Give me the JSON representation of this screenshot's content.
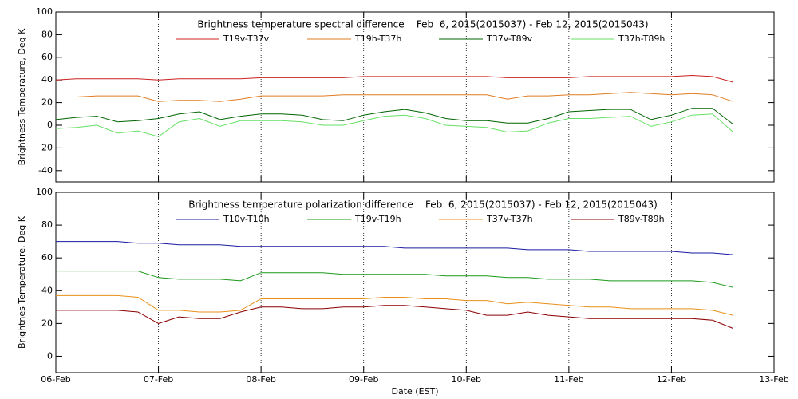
{
  "chart_data": [
    {
      "type": "line",
      "title": "Brightness temperature spectral difference    Feb  6, 2015(2015037) - Feb 12, 2015(2015043)",
      "y_label": "Brightness Temperature, Deg K",
      "x": [
        0,
        0.2,
        0.4,
        0.6,
        0.8,
        1.0,
        1.2,
        1.4,
        1.6,
        1.8,
        2.0,
        2.2,
        2.4,
        2.6,
        2.8,
        3.0,
        3.2,
        3.4,
        3.6,
        3.8,
        4.0,
        4.2,
        4.4,
        4.6,
        4.8,
        5.0,
        5.2,
        5.4,
        5.6,
        5.8,
        6.0,
        6.2,
        6.4,
        6.6
      ],
      "xlim": [
        0,
        7
      ],
      "xticks": [
        0,
        1,
        2,
        3,
        4,
        5,
        6,
        7
      ],
      "xgrid": true,
      "ylim": [
        -50,
        100
      ],
      "yticks": [
        -40,
        -20,
        0,
        20,
        40,
        60,
        80,
        100
      ],
      "series": [
        {
          "name": "T19v-T37v",
          "color": "#cc2020",
          "values": [
            40,
            41,
            41,
            41,
            41,
            40,
            41,
            41,
            41,
            41,
            42,
            42,
            42,
            42,
            42,
            43,
            43,
            43,
            43,
            43,
            43,
            43,
            42,
            42,
            42,
            42,
            43,
            43,
            43,
            43,
            43,
            44,
            43,
            38
          ]
        },
        {
          "name": "T19h-T37h",
          "color": "#e07b20",
          "values": [
            25,
            25,
            26,
            26,
            26,
            21,
            22,
            22,
            21,
            23,
            26,
            26,
            26,
            26,
            27,
            27,
            27,
            27,
            27,
            27,
            27,
            27,
            23,
            26,
            26,
            27,
            27,
            28,
            29,
            28,
            27,
            28,
            27,
            21
          ]
        },
        {
          "name": "T37v-T89v",
          "color": "#006400",
          "values": [
            5,
            7,
            8,
            3,
            4,
            6,
            10,
            12,
            5,
            8,
            10,
            10,
            9,
            5,
            4,
            9,
            12,
            14,
            11,
            6,
            4,
            4,
            2,
            2,
            6,
            12,
            13,
            14,
            14,
            5,
            9,
            15,
            15,
            1
          ]
        },
        {
          "name": "T37h-T89h",
          "color": "#66e066",
          "values": [
            -3,
            -2,
            0,
            -7,
            -5,
            -10,
            3,
            6,
            -1,
            4,
            4,
            4,
            3,
            0,
            0,
            4,
            8,
            9,
            6,
            0,
            -1,
            -2,
            -6,
            -5,
            2,
            6,
            6,
            7,
            8,
            -1,
            3,
            9,
            10,
            -6
          ]
        }
      ]
    },
    {
      "type": "line",
      "title": "Brightness temperature polarization difference    Feb  6, 2015(2015037) - Feb 12, 2015(2015043)",
      "y_label": "Brightnes Temperature, Deg K",
      "x_label": "Date (EST)",
      "x": [
        0,
        0.2,
        0.4,
        0.6,
        0.8,
        1.0,
        1.2,
        1.4,
        1.6,
        1.8,
        2.0,
        2.2,
        2.4,
        2.6,
        2.8,
        3.0,
        3.2,
        3.4,
        3.6,
        3.8,
        4.0,
        4.2,
        4.4,
        4.6,
        4.8,
        5.0,
        5.2,
        5.4,
        5.6,
        5.8,
        6.0,
        6.2,
        6.4,
        6.6
      ],
      "xlim": [
        0,
        7
      ],
      "xticks": [
        {
          "value": 0,
          "label": "06-Feb"
        },
        {
          "value": 1,
          "label": "07-Feb"
        },
        {
          "value": 2,
          "label": "08-Feb"
        },
        {
          "value": 3,
          "label": "09-Feb"
        },
        {
          "value": 4,
          "label": "10-Feb"
        },
        {
          "value": 5,
          "label": "11-Feb"
        },
        {
          "value": 6,
          "label": "12-Feb"
        },
        {
          "value": 7,
          "label": "13-Feb"
        }
      ],
      "xgrid": true,
      "ylim": [
        -10,
        100
      ],
      "yticks": [
        0,
        20,
        40,
        60,
        80,
        100
      ],
      "series": [
        {
          "name": "T10v-T10h",
          "color": "#1a1aa0",
          "values": [
            70,
            70,
            70,
            70,
            69,
            69,
            68,
            68,
            68,
            67,
            67,
            67,
            67,
            67,
            67,
            67,
            67,
            66,
            66,
            66,
            66,
            66,
            66,
            65,
            65,
            65,
            64,
            64,
            64,
            64,
            64,
            63,
            63,
            62
          ]
        },
        {
          "name": "T19v-T19h",
          "color": "#1a9a1a",
          "values": [
            52,
            52,
            52,
            52,
            52,
            48,
            47,
            47,
            47,
            46,
            51,
            51,
            51,
            51,
            50,
            50,
            50,
            50,
            50,
            49,
            49,
            49,
            48,
            48,
            47,
            47,
            47,
            46,
            46,
            46,
            46,
            46,
            45,
            42
          ]
        },
        {
          "name": "T37v-T37h",
          "color": "#e8901a",
          "values": [
            37,
            37,
            37,
            37,
            36,
            28,
            28,
            27,
            27,
            28,
            35,
            35,
            35,
            35,
            35,
            35,
            36,
            36,
            35,
            35,
            34,
            34,
            32,
            33,
            32,
            31,
            30,
            30,
            29,
            29,
            29,
            29,
            28,
            25
          ]
        },
        {
          "name": "T89v-T89h",
          "color": "#8b0000",
          "values": [
            28,
            28,
            28,
            28,
            27,
            20,
            24,
            23,
            23,
            27,
            30,
            30,
            29,
            29,
            30,
            30,
            31,
            31,
            30,
            29,
            28,
            25,
            25,
            27,
            25,
            24,
            23,
            23,
            23,
            23,
            23,
            23,
            22,
            17
          ]
        }
      ]
    }
  ]
}
